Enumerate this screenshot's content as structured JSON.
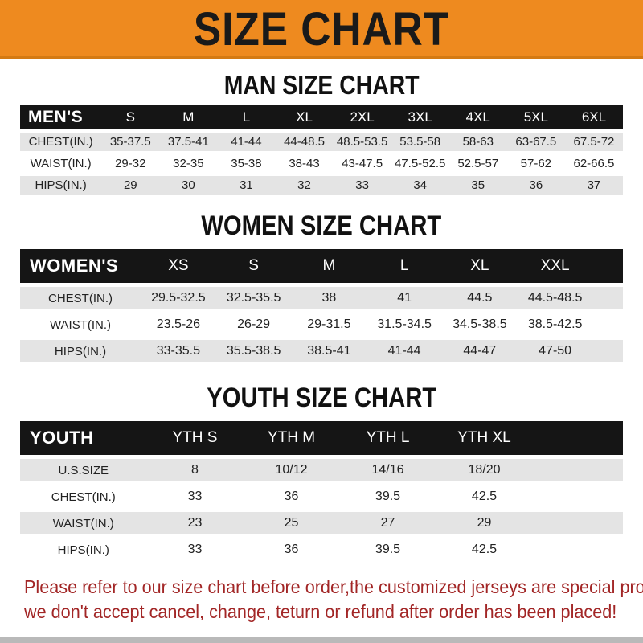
{
  "banner": {
    "title": "SIZE CHART"
  },
  "sections": [
    {
      "heading": "MAN SIZE CHART",
      "label": "MEN'S",
      "columns": [
        "S",
        "M",
        "L",
        "XL",
        "2XL",
        "3XL",
        "4XL",
        "5XL",
        "6XL"
      ],
      "rows": [
        {
          "label": "CHEST(IN.)",
          "values": [
            "35-37.5",
            "37.5-41",
            "41-44",
            "44-48.5",
            "48.5-53.5",
            "53.5-58",
            "58-63",
            "63-67.5",
            "67.5-72"
          ]
        },
        {
          "label": "WAIST(IN.)",
          "values": [
            "29-32",
            "32-35",
            "35-38",
            "38-43",
            "43-47.5",
            "47.5-52.5",
            "52.5-57",
            "57-62",
            "62-66.5"
          ]
        },
        {
          "label": "HIPS(IN.)",
          "values": [
            "29",
            "30",
            "31",
            "32",
            "33",
            "34",
            "35",
            "36",
            "37"
          ]
        }
      ]
    },
    {
      "heading": "WOMEN SIZE CHART",
      "label": "WOMEN'S",
      "columns": [
        "XS",
        "S",
        "M",
        "L",
        "XL",
        "XXL"
      ],
      "rows": [
        {
          "label": "CHEST(IN.)",
          "values": [
            "29.5-32.5",
            "32.5-35.5",
            "38",
            "41",
            "44.5",
            "44.5-48.5"
          ]
        },
        {
          "label": "WAIST(IN.)",
          "values": [
            "23.5-26",
            "26-29",
            "29-31.5",
            "31.5-34.5",
            "34.5-38.5",
            "38.5-42.5"
          ]
        },
        {
          "label": "HIPS(IN.)",
          "values": [
            "33-35.5",
            "35.5-38.5",
            "38.5-41",
            "41-44",
            "44-47",
            "47-50"
          ]
        }
      ]
    },
    {
      "heading": "YOUTH SIZE CHART",
      "label": "YOUTH",
      "columns": [
        "YTH S",
        "YTH M",
        "YTH L",
        "YTH XL"
      ],
      "rows": [
        {
          "label": "U.S.SIZE",
          "values": [
            "8",
            "10/12",
            "14/16",
            "18/20"
          ]
        },
        {
          "label": "CHEST(IN.)",
          "values": [
            "33",
            "36",
            "39.5",
            "42.5"
          ]
        },
        {
          "label": "WAIST(IN.)",
          "values": [
            "23",
            "25",
            "27",
            "29"
          ]
        },
        {
          "label": "HIPS(IN.)",
          "values": [
            "33",
            "36",
            "39.5",
            "42.5"
          ]
        }
      ]
    }
  ],
  "footer": {
    "line1": "Please refer to our size chart before order,the customized jerseys are special products,",
    "line2": "we don't accept cancel, change, teturn or refund after order has been placed!"
  },
  "colors": {
    "banner_bg": "#ee8a1f",
    "header_bg": "#151515",
    "row_alt": "#e4e4e4",
    "footer_text": "#a22626"
  }
}
